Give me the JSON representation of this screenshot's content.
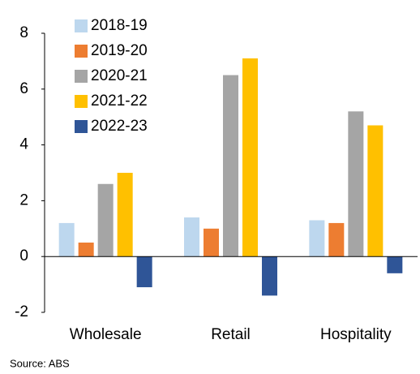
{
  "chart_data": {
    "type": "bar",
    "categories": [
      "Wholesale",
      "Retail",
      "Hospitality"
    ],
    "series": [
      {
        "name": "2018-19",
        "color": "#bdd7ee",
        "values": [
          1.2,
          1.4,
          1.3
        ]
      },
      {
        "name": "2019-20",
        "color": "#ed7d31",
        "values": [
          0.5,
          1.0,
          1.2
        ]
      },
      {
        "name": "2020-21",
        "color": "#a5a5a5",
        "values": [
          2.6,
          6.5,
          5.2
        ]
      },
      {
        "name": "2021-22",
        "color": "#ffc000",
        "values": [
          3.0,
          7.1,
          4.7
        ]
      },
      {
        "name": "2022-23",
        "color": "#2f5597",
        "values": [
          -1.1,
          -1.4,
          -0.6
        ]
      }
    ],
    "ylim": [
      -2,
      8
    ],
    "yticks": [
      -2,
      0,
      2,
      4,
      6,
      8
    ],
    "grid": false,
    "legend": "top-left",
    "source": "Source: ABS"
  }
}
